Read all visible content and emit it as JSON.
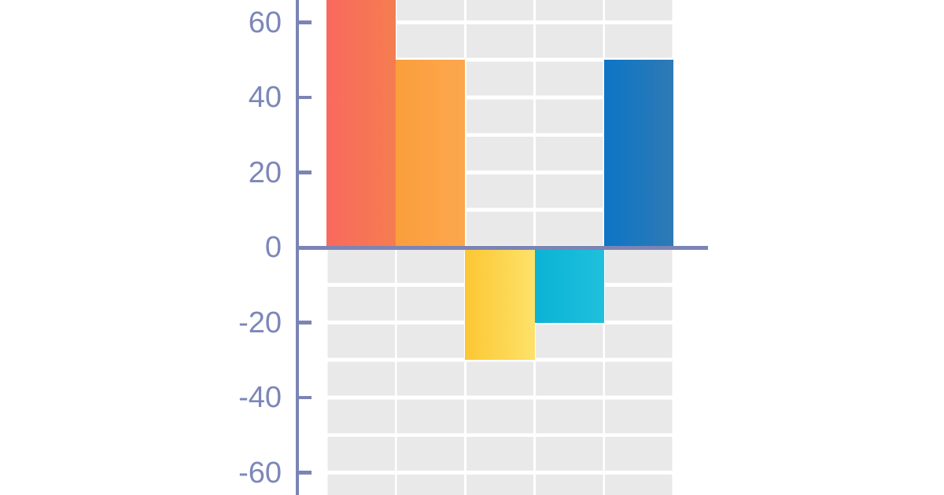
{
  "chart_data": {
    "type": "bar",
    "title": "",
    "xlabel": "",
    "ylabel": "",
    "categories": [
      "",
      "",
      "",
      "",
      ""
    ],
    "values": [
      70,
      50,
      -30,
      -20,
      50
    ],
    "notes": "First (coral) bar is cropped by the top edge of the image; its value is estimated (>= 66). No category labels are visible in the crop.",
    "bar_gradients": [
      {
        "from": "#f8695e",
        "to": "#f57d50"
      },
      {
        "from": "#fb9e3c",
        "to": "#fca74e"
      },
      {
        "from": "#fcc733",
        "to": "#fde26a"
      },
      {
        "from": "#0bb3d4",
        "to": "#1fc0dc"
      },
      {
        "from": "#0d75c6",
        "to": "#2e7ab5"
      }
    ],
    "y_axis": {
      "ticks": [
        60,
        40,
        20,
        0,
        -20,
        -40,
        -60
      ],
      "tick_labels": [
        "60",
        "40",
        "20",
        "0",
        "-20",
        "-40",
        "-60"
      ],
      "visible_range": [
        -66,
        66
      ],
      "gridline_step": 10,
      "tick_step": 20
    },
    "legend": null,
    "grid": {
      "cell_color": "#e9e9e9",
      "line_color": "#ffffff",
      "grid_on": true
    },
    "colors": {
      "axis": "#7b84b4",
      "tick_label": "#7c87b9",
      "zero_line": "#7b84b4",
      "background": "#ffffff"
    }
  }
}
